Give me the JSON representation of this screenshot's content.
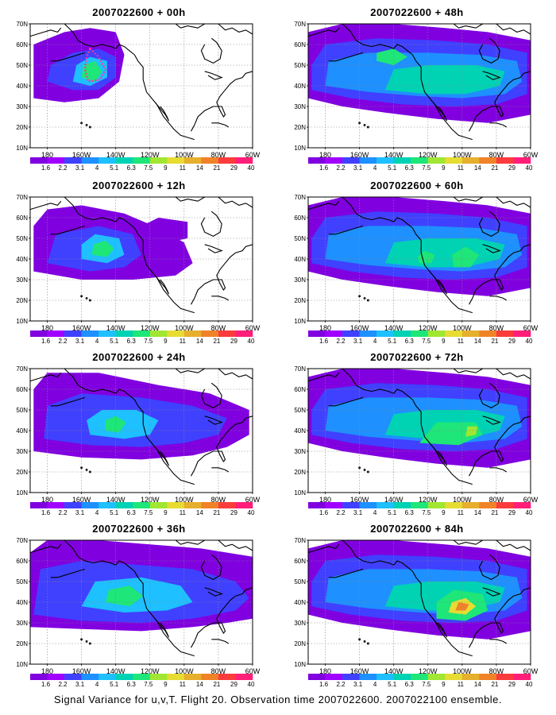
{
  "colorbar": {
    "colors": [
      "#8000e0",
      "#a000ff",
      "#4040ff",
      "#1e90ff",
      "#1ec0ff",
      "#00d2b4",
      "#1ee678",
      "#a0e632",
      "#e6dc32",
      "#e6af2d",
      "#f08228",
      "#fa3c3c",
      "#ff1e78"
    ],
    "labels": [
      "1.6",
      "2.2",
      "3.1",
      "4",
      "5.1",
      "6.3",
      "7.5",
      "9",
      "11",
      "14",
      "21",
      "29",
      "40"
    ]
  },
  "map_axes": {
    "lat_labels": [
      "70N",
      "60N",
      "50N",
      "40N",
      "30N",
      "20N",
      "10N"
    ],
    "lon_labels": [
      "180",
      "160W",
      "140W",
      "120W",
      "100W",
      "80W",
      "60W"
    ]
  },
  "panels": [
    {
      "id": "p00",
      "title": "2007022600 + 00h"
    },
    {
      "id": "p48",
      "title": "2007022600 + 48h"
    },
    {
      "id": "p12",
      "title": "2007022600 + 12h"
    },
    {
      "id": "p60",
      "title": "2007022600 + 60h"
    },
    {
      "id": "p24",
      "title": "2007022600 + 24h"
    },
    {
      "id": "p72",
      "title": "2007022600 + 72h"
    },
    {
      "id": "p36",
      "title": "2007022600 + 36h"
    },
    {
      "id": "p84",
      "title": "2007022600 + 84h"
    }
  ],
  "caption": "Signal Variance for u,v,T. Flight 20. Observation time 2007022600. 2007022100 ensemble.",
  "flight_track_color": "#ff3399"
}
